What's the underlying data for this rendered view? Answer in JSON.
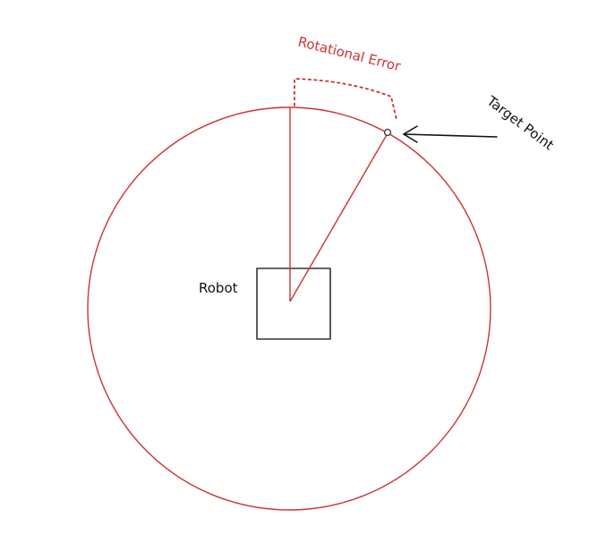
{
  "labels": {
    "rotational_error": "Rotational Error",
    "target_point": "Target Point",
    "robot": "Robot"
  },
  "colors": {
    "accent": "#cc3333",
    "ink": "#222222",
    "background": "#ffffff"
  }
}
